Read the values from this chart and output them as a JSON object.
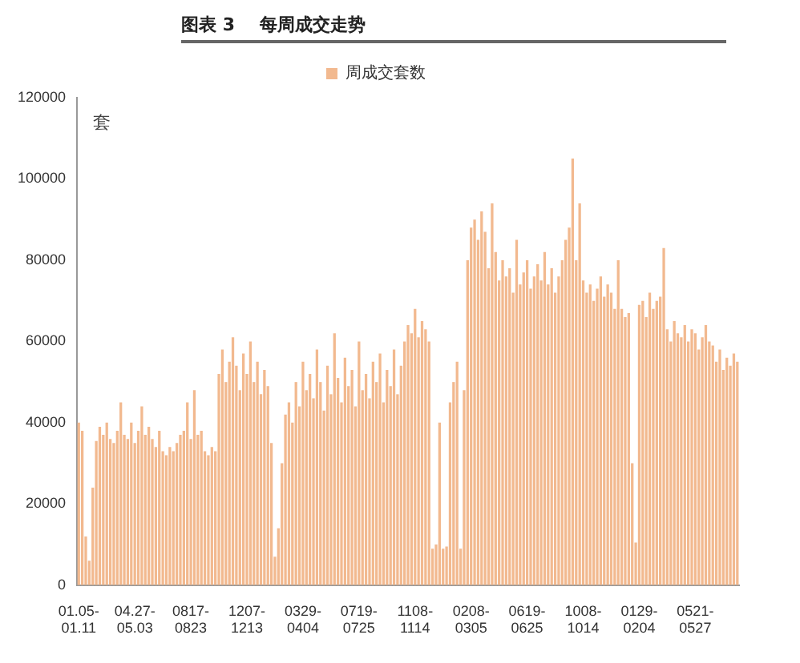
{
  "chart_data": {
    "type": "bar",
    "title": "图表 3    每周成交走势",
    "ylabel": "套",
    "categories": [
      "01.05-01.11",
      null,
      null,
      null,
      null,
      null,
      null,
      null,
      null,
      null,
      null,
      null,
      null,
      null,
      null,
      null,
      "04.27-05.03",
      null,
      null,
      null,
      null,
      null,
      null,
      null,
      null,
      null,
      null,
      null,
      null,
      null,
      null,
      null,
      "0817-0823",
      null,
      null,
      null,
      null,
      null,
      null,
      null,
      null,
      null,
      null,
      null,
      null,
      null,
      null,
      null,
      "1207-1213",
      null,
      null,
      null,
      null,
      null,
      null,
      null,
      null,
      null,
      null,
      null,
      null,
      null,
      null,
      null,
      "0329-0404",
      null,
      null,
      null,
      null,
      null,
      null,
      null,
      null,
      null,
      null,
      null,
      null,
      null,
      null,
      null,
      "0719-0725",
      null,
      null,
      null,
      null,
      null,
      null,
      null,
      null,
      null,
      null,
      null,
      null,
      null,
      null,
      null,
      "1108-1114",
      null,
      null,
      null,
      null,
      null,
      null,
      null,
      null,
      null,
      null,
      null,
      null,
      null,
      null,
      null,
      "0208-0305",
      null,
      null,
      null,
      null,
      null,
      null,
      null,
      null,
      null,
      null,
      null,
      null,
      null,
      null,
      null,
      "0619-0625",
      null,
      null,
      null,
      null,
      null,
      null,
      null,
      null,
      null,
      null,
      null,
      null,
      null,
      null,
      null,
      "1008-1014",
      null,
      null,
      null,
      null,
      null,
      null,
      null,
      null,
      null,
      null,
      null,
      null,
      null,
      null,
      null,
      "0129-0204",
      null,
      null,
      null,
      null,
      null,
      null,
      null,
      null,
      null,
      null,
      null,
      null,
      null,
      null,
      null,
      "0521-0527",
      null,
      null,
      null,
      null,
      null,
      null,
      null,
      null,
      null,
      null,
      null,
      null
    ],
    "series": [
      {
        "name": "周成交套数",
        "color": "#f2b98f",
        "values": [
          40000,
          38000,
          12000,
          6000,
          24000,
          35500,
          39000,
          37000,
          40000,
          36000,
          35000,
          38000,
          45000,
          37000,
          36000,
          40000,
          35000,
          38000,
          44000,
          37000,
          39000,
          36000,
          34000,
          38000,
          33000,
          32000,
          34000,
          33000,
          35000,
          37000,
          38000,
          45000,
          36000,
          48000,
          37000,
          38000,
          33000,
          32000,
          34000,
          33000,
          52000,
          58000,
          50000,
          55000,
          61000,
          54000,
          48000,
          57000,
          52000,
          60000,
          50000,
          55000,
          47000,
          53000,
          49000,
          35000,
          7000,
          14000,
          30000,
          42000,
          45000,
          40000,
          50000,
          44000,
          55000,
          48000,
          52000,
          46000,
          58000,
          50000,
          43000,
          54000,
          47000,
          62000,
          51000,
          45000,
          56000,
          49000,
          53000,
          44000,
          60000,
          48000,
          52000,
          46000,
          55000,
          50000,
          57000,
          45000,
          53000,
          49000,
          58000,
          47000,
          54000,
          60000,
          64000,
          62000,
          68000,
          61000,
          65000,
          63000,
          60000,
          9000,
          10000,
          40000,
          9000,
          9500,
          45000,
          50000,
          55000,
          9000,
          48000,
          80000,
          88000,
          90000,
          85000,
          92000,
          87000,
          78000,
          94000,
          82000,
          75000,
          80000,
          76000,
          78000,
          72000,
          85000,
          74000,
          77000,
          80000,
          73000,
          76000,
          79000,
          75000,
          82000,
          74000,
          78000,
          72000,
          76000,
          80000,
          85000,
          88000,
          105000,
          80000,
          94000,
          75000,
          72000,
          74000,
          70000,
          73000,
          76000,
          71000,
          74000,
          72000,
          68000,
          80000,
          68000,
          66000,
          67000,
          30000,
          10500,
          69000,
          70000,
          66000,
          72000,
          68000,
          70000,
          71000,
          83000,
          63000,
          60000,
          65000,
          62000,
          61000,
          64000,
          60000,
          63000,
          62000,
          58000,
          61000,
          64000,
          60000,
          59000,
          55000,
          58000,
          53000,
          56000,
          54000,
          57000,
          55000
        ]
      }
    ],
    "ylim": [
      0,
      120000
    ],
    "yticks": [
      0,
      20000,
      40000,
      60000,
      80000,
      100000,
      120000
    ],
    "grid": false,
    "legend": "top"
  }
}
